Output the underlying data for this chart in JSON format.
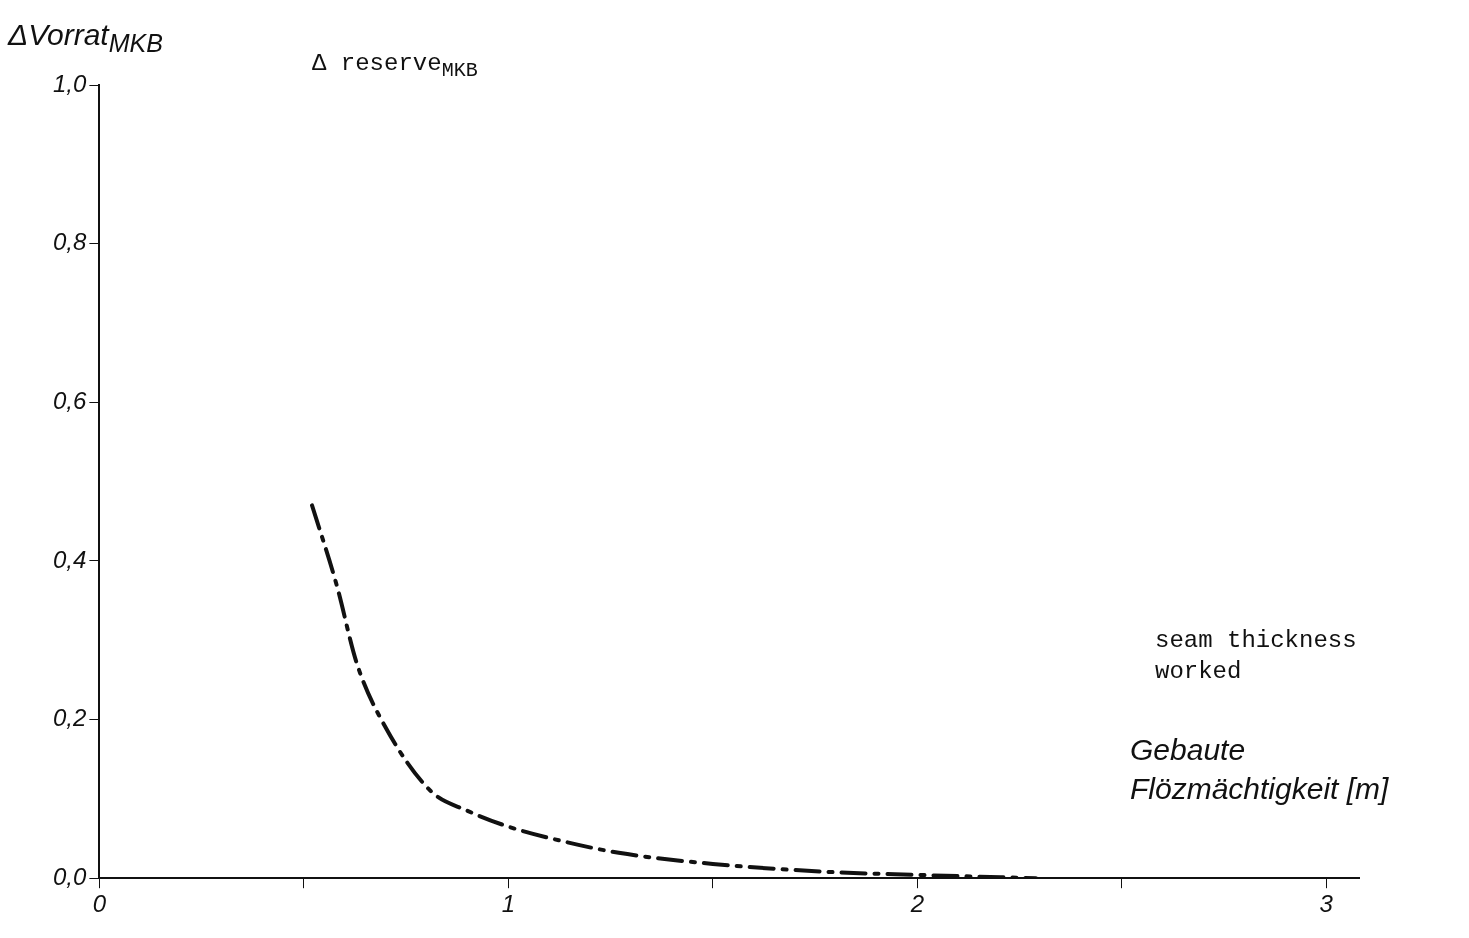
{
  "chart_data": {
    "type": "line",
    "ylabel": "ΔVorrat$_{MKB}$",
    "xlabel": "Gebaute Flözmächtigkeit [m]",
    "annotations": [
      "Δ reserve$_{MKB}$",
      "seam thickness worked"
    ],
    "x": [
      0.52,
      0.58,
      0.63,
      0.7,
      0.81,
      0.9,
      1.0,
      1.13,
      1.27,
      1.5,
      1.78,
      2.01,
      2.29
    ],
    "values": [
      0.47,
      0.37,
      0.27,
      0.19,
      0.11,
      0.085,
      0.065,
      0.047,
      0.032,
      0.018,
      0.008,
      0.004,
      0.0
    ],
    "color": "#111111",
    "line_style": "dashed",
    "marker": "none",
    "xlim": [
      0,
      3.08
    ],
    "xticks": [
      0,
      {
        "value": 0.5,
        "label": null
      },
      1,
      {
        "value": 1.5,
        "label": null
      },
      2,
      {
        "value": 2.5,
        "label": null
      },
      3
    ],
    "ylim": [
      0,
      1.0
    ],
    "yticks": [
      {
        "value": 0,
        "label": "0,0"
      },
      {
        "value": 0.2,
        "label": "0,2"
      },
      {
        "value": 0.4,
        "label": "0,4"
      },
      {
        "value": 0.6,
        "label": "0,6"
      },
      {
        "value": 0.8,
        "label": "0,8"
      },
      {
        "value": 1.0,
        "label": "1,0"
      }
    ],
    "grid": false,
    "legend": false
  }
}
